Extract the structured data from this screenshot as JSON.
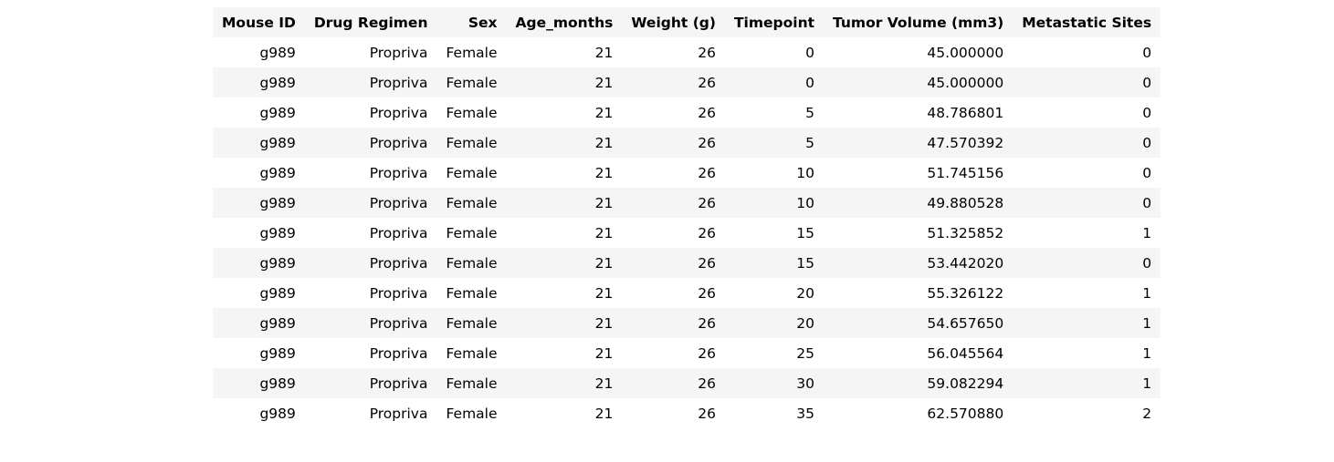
{
  "table": {
    "columns": [
      "Mouse ID",
      "Drug Regimen",
      "Sex",
      "Age_months",
      "Weight (g)",
      "Timepoint",
      "Tumor Volume (mm3)",
      "Metastatic Sites"
    ],
    "rows": [
      [
        "g989",
        "Propriva",
        "Female",
        "21",
        "26",
        "0",
        "45.000000",
        "0"
      ],
      [
        "g989",
        "Propriva",
        "Female",
        "21",
        "26",
        "0",
        "45.000000",
        "0"
      ],
      [
        "g989",
        "Propriva",
        "Female",
        "21",
        "26",
        "5",
        "48.786801",
        "0"
      ],
      [
        "g989",
        "Propriva",
        "Female",
        "21",
        "26",
        "5",
        "47.570392",
        "0"
      ],
      [
        "g989",
        "Propriva",
        "Female",
        "21",
        "26",
        "10",
        "51.745156",
        "0"
      ],
      [
        "g989",
        "Propriva",
        "Female",
        "21",
        "26",
        "10",
        "49.880528",
        "0"
      ],
      [
        "g989",
        "Propriva",
        "Female",
        "21",
        "26",
        "15",
        "51.325852",
        "1"
      ],
      [
        "g989",
        "Propriva",
        "Female",
        "21",
        "26",
        "15",
        "53.442020",
        "0"
      ],
      [
        "g989",
        "Propriva",
        "Female",
        "21",
        "26",
        "20",
        "55.326122",
        "1"
      ],
      [
        "g989",
        "Propriva",
        "Female",
        "21",
        "26",
        "20",
        "54.657650",
        "1"
      ],
      [
        "g989",
        "Propriva",
        "Female",
        "21",
        "26",
        "25",
        "56.045564",
        "1"
      ],
      [
        "g989",
        "Propriva",
        "Female",
        "21",
        "26",
        "30",
        "59.082294",
        "1"
      ],
      [
        "g989",
        "Propriva",
        "Female",
        "21",
        "26",
        "35",
        "62.570880",
        "2"
      ]
    ]
  },
  "colors": {
    "header_background": "#f5f5f5",
    "stripe_background": "#f5f5f5",
    "text": "#000000"
  }
}
